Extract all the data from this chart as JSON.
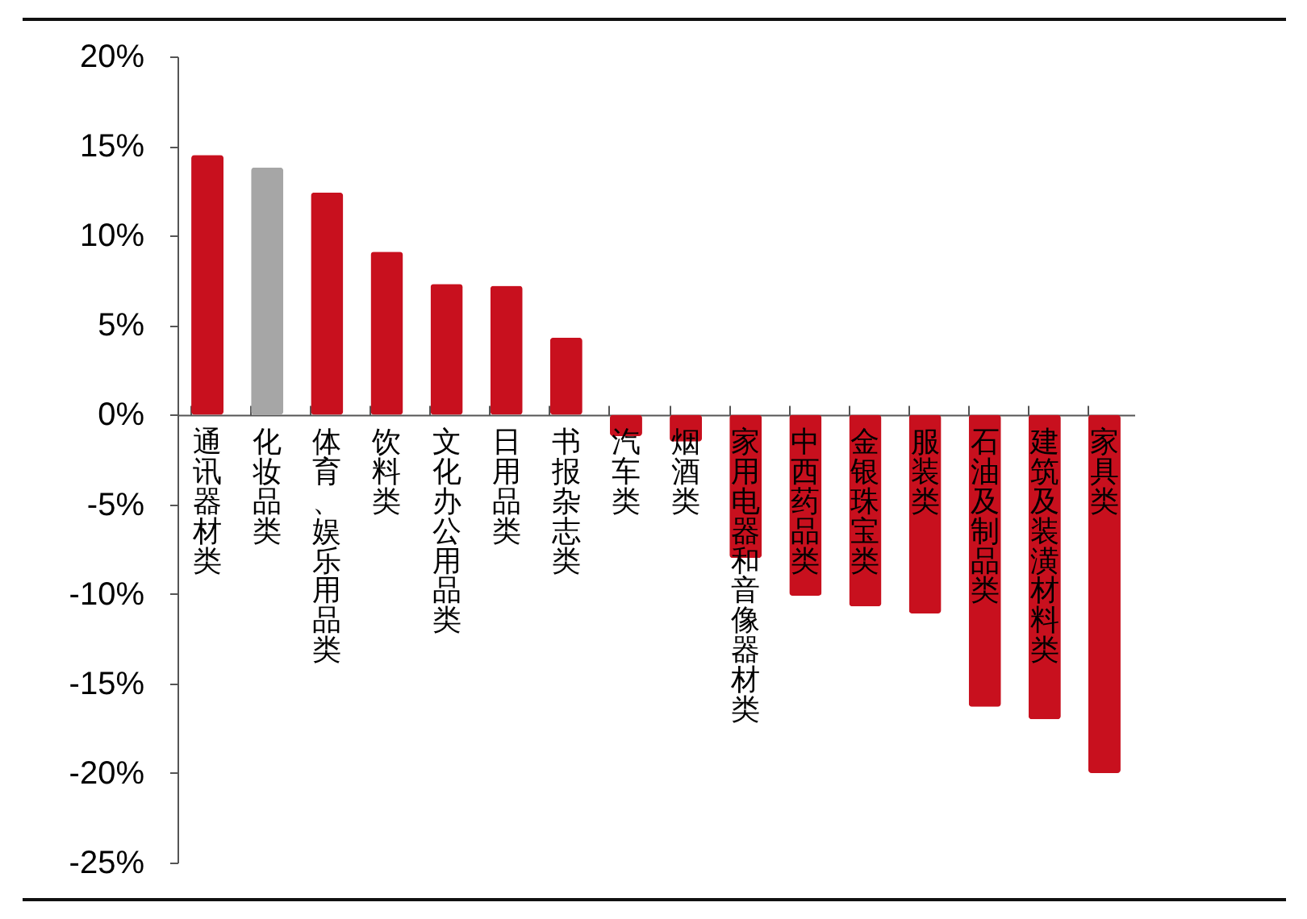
{
  "chart_data": {
    "type": "bar",
    "categories": [
      "通讯器材类",
      "化妆品类",
      "体育、娱乐用品类",
      "饮料类",
      "文化办公用品类",
      "日用品类",
      "书报杂志类",
      "汽车类",
      "烟酒类",
      "家用电器和音像器材类",
      "中西药品类",
      "金银珠宝类",
      "服装类",
      "石油及制品类",
      "建筑及装潢材料类",
      "家具类"
    ],
    "values": [
      14.5,
      13.8,
      12.4,
      9.1,
      7.3,
      7.2,
      4.3,
      -1.2,
      -1.5,
      -8.0,
      -10.1,
      -10.7,
      -11.1,
      -16.3,
      -17.0,
      -20.0
    ],
    "colors": [
      "#c8101e",
      "#a6a6a6",
      "#c8101e",
      "#c8101e",
      "#c8101e",
      "#c8101e",
      "#c8101e",
      "#c8101e",
      "#c8101e",
      "#c8101e",
      "#c8101e",
      "#c8101e",
      "#c8101e",
      "#c8101e",
      "#c8101e",
      "#c8101e"
    ],
    "ylim": [
      -25,
      20
    ],
    "yticks": [
      {
        "value": 20,
        "label": "20%"
      },
      {
        "value": 15,
        "label": "15%"
      },
      {
        "value": 10,
        "label": "10%"
      },
      {
        "value": 5,
        "label": "5%"
      },
      {
        "value": 0,
        "label": "0%"
      },
      {
        "value": -5,
        "label": "-5%"
      },
      {
        "value": -10,
        "label": "-10%"
      },
      {
        "value": -15,
        "label": "-15%"
      },
      {
        "value": -20,
        "label": "-20%"
      },
      {
        "value": -25,
        "label": "-25%"
      }
    ]
  }
}
